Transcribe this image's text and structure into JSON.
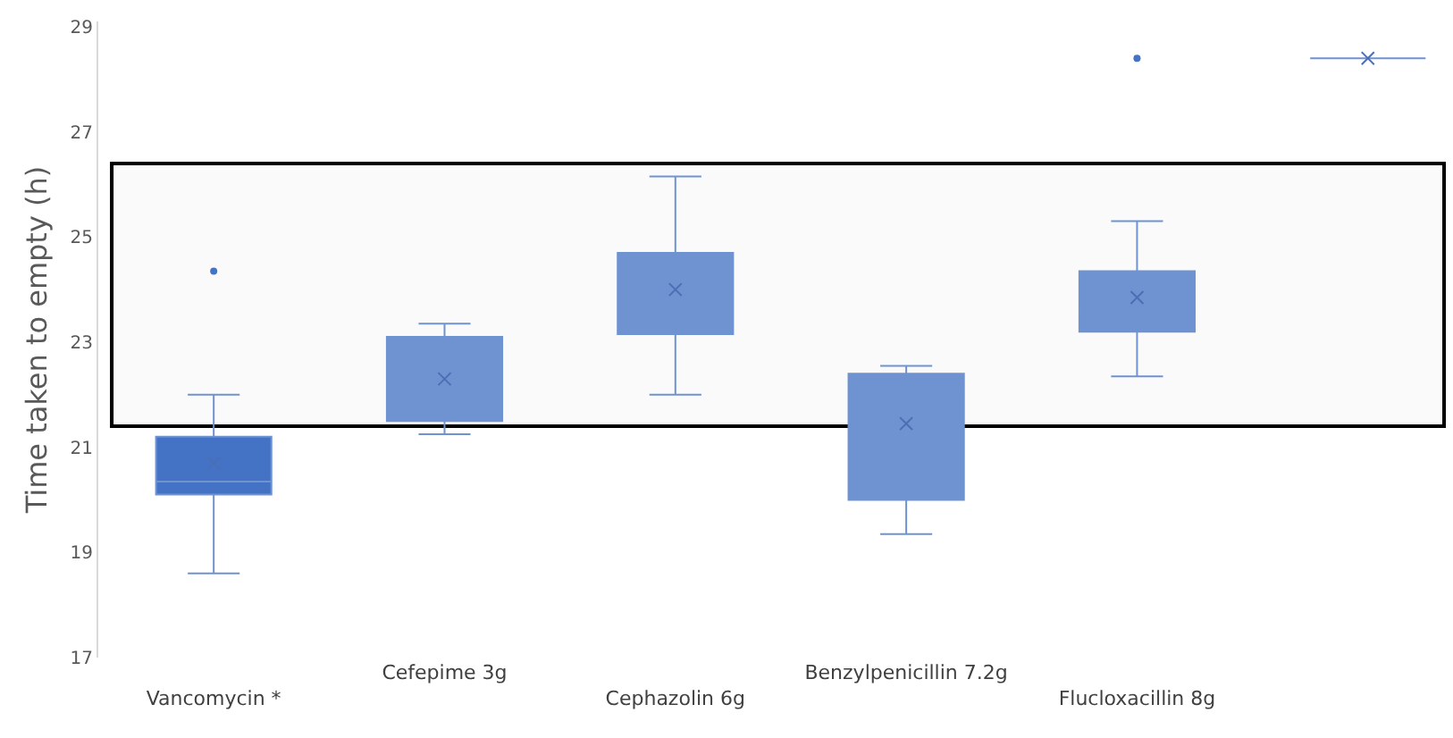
{
  "chart_data": {
    "type": "box",
    "ylabel": "Time taken to empty (h)",
    "categories": [
      "Vancomycin *",
      "Cefepime 3g",
      "Cephazolin 6g",
      "Benzylpenicillin 7.2g",
      "Flucloxacillin 8g",
      null
    ],
    "boxes": [
      {
        "low": 18.6,
        "q1": 20.1,
        "median": 20.35,
        "q3": 21.2,
        "high": 22.0,
        "mean": 20.7,
        "outliers": [
          24.35
        ]
      },
      {
        "low": 21.25,
        "q1": 21.5,
        "median": 22.3,
        "q3": 23.1,
        "high": 23.35,
        "mean": 22.3
      },
      {
        "low": 22.0,
        "q1": 23.15,
        "median": 24.05,
        "q3": 24.7,
        "high": 26.15,
        "mean": 24.0
      },
      {
        "low": 19.35,
        "q1": 20.0,
        "median": 22.05,
        "q3": 22.4,
        "high": 22.55,
        "mean": 21.45
      },
      {
        "low": 22.35,
        "q1": 23.2,
        "median": 23.55,
        "q3": 24.35,
        "high": 25.3,
        "mean": 23.85,
        "outliers": [
          28.4
        ]
      },
      {
        "low": 28.4,
        "q1": 28.4,
        "median": 28.4,
        "q3": 28.4,
        "high": 28.4,
        "mean": 28.4
      }
    ],
    "colors": [
      "#4472c4",
      "#6f93d1",
      "#6f93d1",
      "#6f93d1",
      "#6f93d1",
      "#6f93d1"
    ],
    "ylim": [
      17,
      29.1
    ],
    "yticks": [
      17,
      19,
      21,
      23,
      25,
      27,
      29
    ],
    "bands": [
      {
        "axis": "y",
        "from": 21.4,
        "to": 26.4,
        "color": "#000000"
      }
    ]
  }
}
